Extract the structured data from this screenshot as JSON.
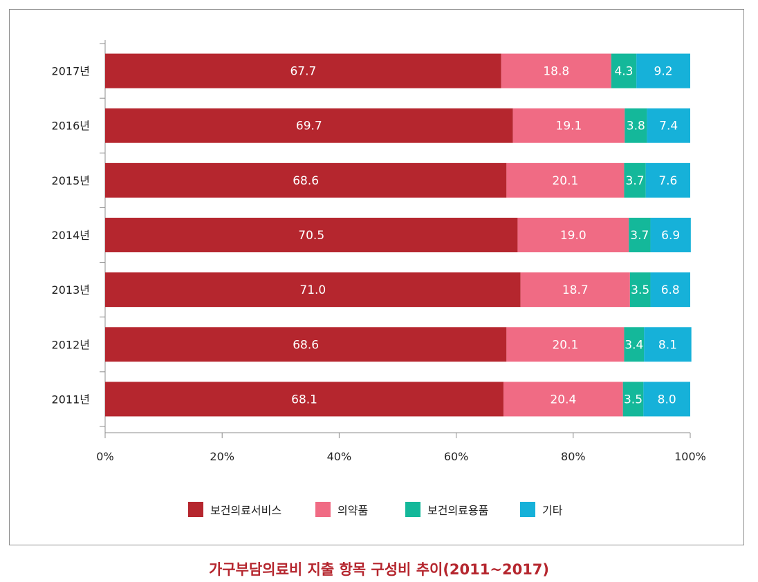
{
  "caption": "가구부담의료비 지출 항목 구성비 추이(2011~2017)",
  "chart_data": {
    "type": "bar",
    "orientation": "horizontal",
    "stacked": true,
    "categories": [
      "2017년",
      "2016년",
      "2015년",
      "2014년",
      "2013년",
      "2012년",
      "2011년"
    ],
    "series": [
      {
        "name": "보건의료서비스",
        "color": "#b5262e",
        "values": [
          67.7,
          69.7,
          68.6,
          70.5,
          71.0,
          68.6,
          68.1
        ]
      },
      {
        "name": "의약품",
        "color": "#f06b84",
        "values": [
          18.8,
          19.1,
          20.1,
          19.0,
          18.7,
          20.1,
          20.4
        ]
      },
      {
        "name": "보건의료용품",
        "color": "#14b89a",
        "values": [
          4.3,
          3.8,
          3.7,
          3.7,
          3.5,
          3.4,
          3.5
        ]
      },
      {
        "name": "기타",
        "color": "#16b1d9",
        "values": [
          9.2,
          7.4,
          7.6,
          6.9,
          6.8,
          8.1,
          8.0
        ]
      }
    ],
    "data_labels": [
      [
        "67.7",
        "69.7",
        "68.6",
        "70.5",
        "71.0",
        "68.6",
        "68.1"
      ],
      [
        "18.8",
        "19.1",
        "20.1",
        "19.0",
        "18.7",
        "20.1",
        "20.4"
      ],
      [
        "4.3",
        "3.8",
        "3.7",
        "3.7",
        "3.5",
        "3.4",
        "3.5"
      ],
      [
        "9.2",
        "7.4",
        "7.6",
        "6.9",
        "6.8",
        "8.1",
        "8.0"
      ]
    ],
    "x_ticks": [
      "0%",
      "20%",
      "40%",
      "60%",
      "80%",
      "100%"
    ],
    "xlim": [
      0,
      100
    ],
    "xlabel": "",
    "ylabel": "",
    "grid": false,
    "legend_position": "bottom"
  }
}
